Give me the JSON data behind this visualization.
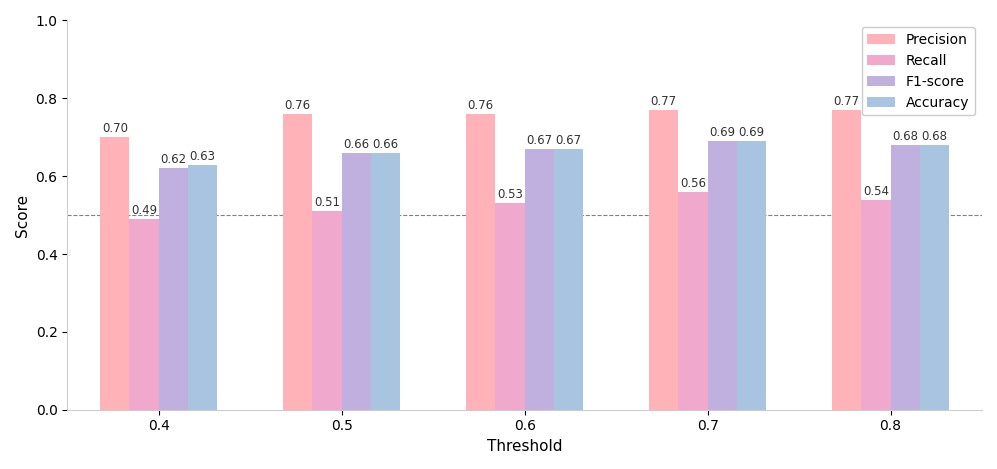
{
  "thresholds": [
    "0.4",
    "0.5",
    "0.6",
    "0.7",
    "0.8"
  ],
  "metrics": [
    "Precision",
    "Recall",
    "F1-score",
    "Accuracy"
  ],
  "values": {
    "Precision": [
      0.7,
      0.76,
      0.76,
      0.77,
      0.77
    ],
    "Recall": [
      0.49,
      0.51,
      0.53,
      0.56,
      0.54
    ],
    "F1-score": [
      0.62,
      0.66,
      0.67,
      0.69,
      0.68
    ],
    "Accuracy": [
      0.63,
      0.66,
      0.67,
      0.69,
      0.68
    ]
  },
  "colors": {
    "Precision": "#ffb3b8",
    "Recall": "#f0a8cc",
    "F1-score": "#c0b0e0",
    "Accuracy": "#a8c4e0"
  },
  "xlabel": "Threshold",
  "ylabel": "Score",
  "ylim": [
    0.0,
    1.0
  ],
  "hline_y": 0.5,
  "bar_width": 0.16,
  "legend_loc": "upper right",
  "axis_fontsize": 11,
  "tick_fontsize": 10,
  "annotation_fontsize": 8.5
}
